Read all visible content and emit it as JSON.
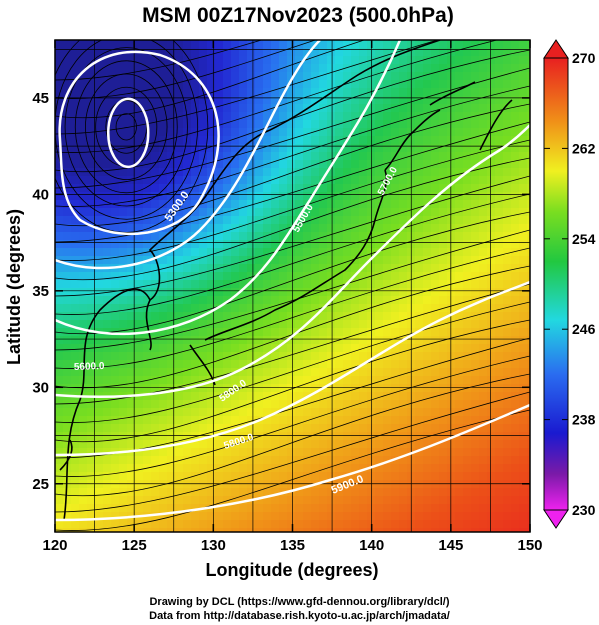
{
  "title": "MSM 00Z17Nov2023 (500.0hPa)",
  "xlabel": "Longitude (degrees)",
  "ylabel": "Latitude  (degrees)",
  "x_ticks": [
    "120",
    "125",
    "130",
    "135",
    "140",
    "145",
    "150"
  ],
  "y_ticks": [
    "25",
    "30",
    "35",
    "40",
    "45"
  ],
  "colorbar": {
    "ticks": [
      "270",
      "262",
      "254",
      "246",
      "238",
      "230"
    ],
    "min": 230,
    "max": 270
  },
  "contour_labels": [
    "5300.0",
    "5500.0",
    "5700.0",
    "5600.0",
    "5800.0",
    "5800.0",
    "5900.0"
  ],
  "credits": {
    "line1": "Drawing by DCL (https://www.gfd-dennou.org/library/dcl/)",
    "line2": "Data from http://database.rish.kyoto-u.ac.jp/arch/jmadata/"
  },
  "map": {
    "lon_range": [
      120,
      150
    ],
    "lat_range": [
      22.5,
      48
    ],
    "shaded_field": "temperature (K)",
    "contoured_field": "geopotential height (m)",
    "low_center": {
      "lon": 124.5,
      "lat": 43.5
    }
  },
  "colors": {
    "cold": "#2a2ad0",
    "cyan": "#22d8d8",
    "green": "#22c82a",
    "yellow": "#f0f020",
    "orange": "#f08018",
    "red": "#e82020",
    "contour": "#ffffff",
    "streamline": "#000000"
  }
}
